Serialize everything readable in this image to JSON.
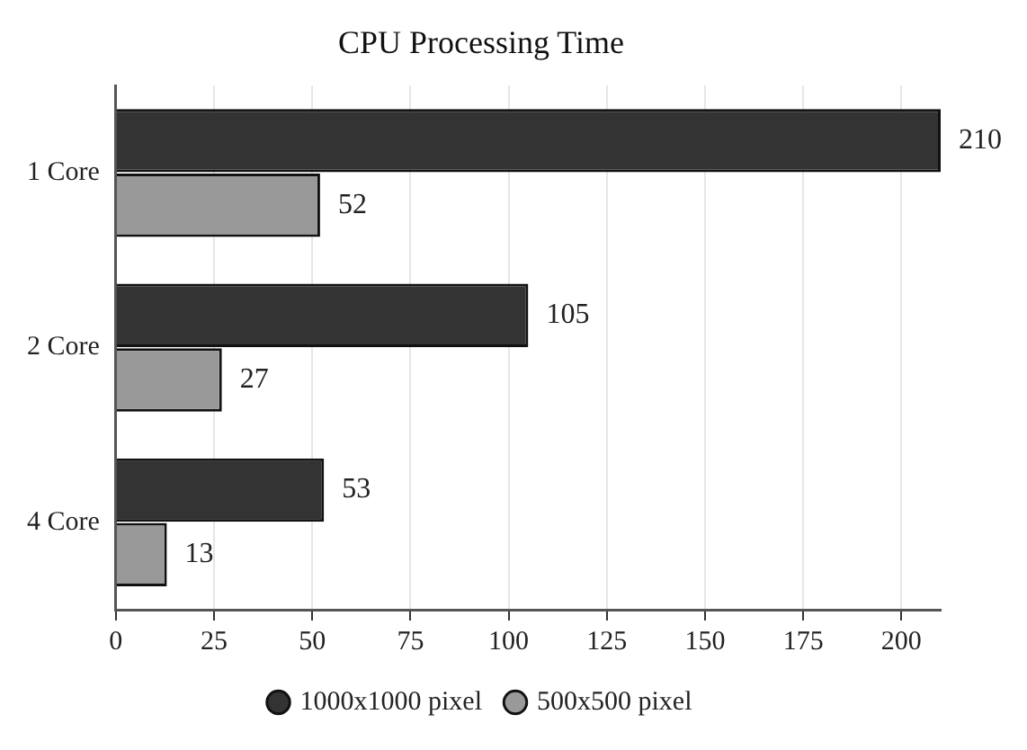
{
  "chart_data": {
    "type": "bar",
    "orientation": "horizontal",
    "title": "CPU Processing Time",
    "categories": [
      "1 Core",
      "2 Core",
      "4 Core"
    ],
    "series": [
      {
        "name": "1000x1000 pixel",
        "color": "#333333",
        "values": [
          210,
          105,
          53
        ]
      },
      {
        "name": "500x500 pixel",
        "color": "#999999",
        "values": [
          52,
          27,
          13
        ]
      }
    ],
    "xlim": [
      0,
      210
    ],
    "xticks": [
      0,
      25,
      50,
      75,
      100,
      125,
      150,
      175,
      200
    ],
    "grid": "x",
    "legend": "bottom",
    "data_labels": true
  }
}
